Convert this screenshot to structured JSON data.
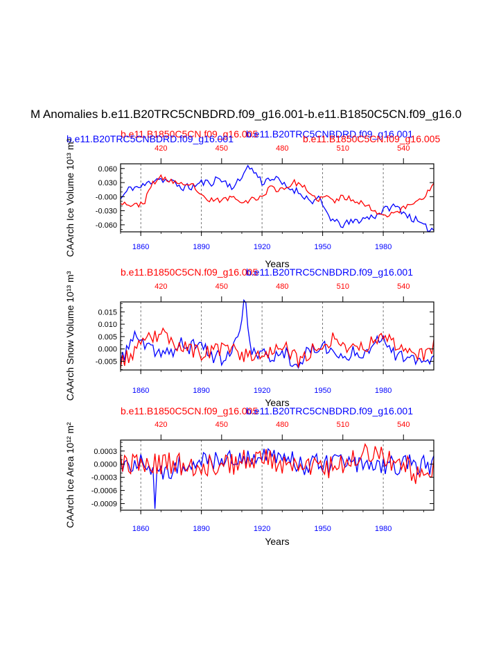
{
  "page_title": "M Anomalies b.e11.B20TRC5CNBDRD.f09_g16.001-b.e11.B1850C5CN.f09_g16.0",
  "colors": {
    "blue": "#0000ff",
    "red": "#ff0000",
    "axis": "#000000",
    "grid": "#555555"
  },
  "chart_data": [
    {
      "type": "line",
      "id": "ice-volume",
      "ylabel": "CAArch Ice Volume 10¹³ m³",
      "xlabel": "Years",
      "top_label_red": "b.e11.B1850C5CN.f09_g16.005",
      "top_label_blue": "b.e11.B20TRC5CNBDRD.f09_g16.001",
      "label_row_a": [
        {
          "text": "b.e11.B20TRC5CNBDRD.f09_g16.001",
          "color": "blue"
        },
        {
          "text": "b.e11.B1850C5CN.f09_g16.005",
          "color": "red"
        }
      ],
      "label_row_b": [
        {
          "text": "b.e11.B20TRC5CNBDRD.f09_g16.001",
          "color": "blue"
        },
        {
          "text": "b.e11.B1850C5CN.f09_g16.005",
          "color": "red"
        }
      ],
      "xlim": [
        1850,
        2005
      ],
      "ylim": [
        -0.075,
        0.07
      ],
      "yticks": [
        0.06,
        0.03,
        0.0,
        -0.03,
        -0.06
      ],
      "ytick_labels": [
        "0.060",
        "0.030",
        "-0.000",
        "-0.030",
        "-0.060"
      ],
      "x_bottom_ticks": [
        1860,
        1890,
        1920,
        1950,
        1980
      ],
      "x_top_ticks": [
        420,
        450,
        480,
        510,
        540
      ],
      "x_top_offset": 1450,
      "grid": "vertical dashed",
      "series": [
        {
          "name": "b.e11.B20TRC5CNBDRD.f09_g16.001",
          "color": "blue",
          "x_start": 1850,
          "x_end": 2005,
          "n": 156,
          "keyframes": [
            [
              1850,
              -0.005
            ],
            [
              1852,
              0.005
            ],
            [
              1855,
              0.02
            ],
            [
              1860,
              0.02
            ],
            [
              1864,
              0.03
            ],
            [
              1868,
              0.04
            ],
            [
              1872,
              0.035
            ],
            [
              1876,
              0.03
            ],
            [
              1880,
              0.02
            ],
            [
              1885,
              0.02
            ],
            [
              1890,
              0.03
            ],
            [
              1895,
              0.03
            ],
            [
              1898,
              0.04
            ],
            [
              1902,
              0.03
            ],
            [
              1906,
              0.02
            ],
            [
              1910,
              0.04
            ],
            [
              1912,
              0.065
            ],
            [
              1914,
              0.06
            ],
            [
              1917,
              0.05
            ],
            [
              1920,
              0.03
            ],
            [
              1924,
              0.04
            ],
            [
              1928,
              0.035
            ],
            [
              1932,
              0.02
            ],
            [
              1936,
              0.015
            ],
            [
              1940,
              0.005
            ],
            [
              1944,
              -0.01
            ],
            [
              1948,
              -0.005
            ],
            [
              1950,
              -0.02
            ],
            [
              1953,
              -0.04
            ],
            [
              1956,
              -0.055
            ],
            [
              1960,
              -0.06
            ],
            [
              1964,
              -0.055
            ],
            [
              1968,
              -0.05
            ],
            [
              1972,
              -0.045
            ],
            [
              1976,
              -0.04
            ],
            [
              1980,
              -0.03
            ],
            [
              1984,
              -0.02
            ],
            [
              1988,
              -0.025
            ],
            [
              1992,
              -0.04
            ],
            [
              1996,
              -0.05
            ],
            [
              2000,
              -0.065
            ],
            [
              2005,
              -0.07
            ]
          ],
          "noise": 0.008,
          "seed": 11
        },
        {
          "name": "b.e11.B1850C5CN.f09_g16.005",
          "color": "red",
          "x_start": 1850,
          "x_end": 2005,
          "n": 156,
          "keyframes": [
            [
              1850,
              -0.01
            ],
            [
              1853,
              -0.015
            ],
            [
              1857,
              -0.02
            ],
            [
              1862,
              -0.01
            ],
            [
              1866,
              0.03
            ],
            [
              1870,
              0.04
            ],
            [
              1874,
              0.035
            ],
            [
              1878,
              0.03
            ],
            [
              1882,
              0.02
            ],
            [
              1886,
              0.025
            ],
            [
              1890,
              0.0
            ],
            [
              1893,
              -0.01
            ],
            [
              1897,
              -0.005
            ],
            [
              1900,
              -0.01
            ],
            [
              1904,
              0.0
            ],
            [
              1908,
              -0.005
            ],
            [
              1912,
              -0.01
            ],
            [
              1916,
              -0.005
            ],
            [
              1920,
              0.0
            ],
            [
              1924,
              0.02
            ],
            [
              1928,
              0.015
            ],
            [
              1932,
              0.02
            ],
            [
              1936,
              0.03
            ],
            [
              1940,
              0.025
            ],
            [
              1944,
              0.0
            ],
            [
              1948,
              -0.005
            ],
            [
              1952,
              0.0
            ],
            [
              1956,
              -0.01
            ],
            [
              1960,
              0.0
            ],
            [
              1964,
              -0.005
            ],
            [
              1968,
              -0.01
            ],
            [
              1972,
              -0.02
            ],
            [
              1976,
              -0.03
            ],
            [
              1980,
              -0.04
            ],
            [
              1984,
              -0.035
            ],
            [
              1988,
              -0.03
            ],
            [
              1992,
              -0.02
            ],
            [
              1996,
              -0.01
            ],
            [
              2000,
              0.0
            ],
            [
              2003,
              0.015
            ],
            [
              2005,
              0.025
            ]
          ],
          "noise": 0.006,
          "seed": 23
        }
      ]
    },
    {
      "type": "line",
      "id": "snow-volume",
      "ylabel": "CAArch Snow Volume 10¹³ m³",
      "xlabel": "Years",
      "top_label_red": "b.e11.B1850C5CN.f09_g16.005",
      "top_label_blue": "b.e11.B20TRC5CNBDRD.f09_g16.001",
      "xlim": [
        1850,
        2005
      ],
      "ylim": [
        -0.0085,
        0.019
      ],
      "yticks": [
        0.015,
        0.01,
        0.005,
        0.0,
        -0.005
      ],
      "ytick_labels": [
        "0.015",
        "0.010",
        "0.005",
        "0.000",
        "-0.005"
      ],
      "x_bottom_ticks": [
        1860,
        1890,
        1920,
        1950,
        1980
      ],
      "x_top_ticks": [
        420,
        450,
        480,
        510,
        540
      ],
      "x_top_offset": 1450,
      "grid": "vertical dashed",
      "series": [
        {
          "name": "b.e11.B20TRC5CNBDRD.f09_g16.001",
          "color": "blue",
          "x_start": 1850,
          "x_end": 2005,
          "n": 156,
          "keyframes": [
            [
              1850,
              -0.006
            ],
            [
              1853,
              0.0
            ],
            [
              1856,
              0.005
            ],
            [
              1860,
              0.003
            ],
            [
              1864,
              0.0
            ],
            [
              1868,
              -0.002
            ],
            [
              1872,
              0.0
            ],
            [
              1876,
              -0.002
            ],
            [
              1880,
              0.002
            ],
            [
              1884,
              0.0
            ],
            [
              1888,
              0.003
            ],
            [
              1892,
              0.0
            ],
            [
              1896,
              -0.003
            ],
            [
              1900,
              -0.004
            ],
            [
              1904,
              -0.003
            ],
            [
              1908,
              0.005
            ],
            [
              1910,
              0.012
            ],
            [
              1911,
              0.017
            ],
            [
              1912,
              0.018
            ],
            [
              1913,
              0.01
            ],
            [
              1915,
              0.0
            ],
            [
              1918,
              -0.003
            ],
            [
              1922,
              -0.002
            ],
            [
              1926,
              -0.004
            ],
            [
              1930,
              0.0
            ],
            [
              1934,
              -0.004
            ],
            [
              1938,
              -0.006
            ],
            [
              1942,
              -0.002
            ],
            [
              1946,
              0.0
            ],
            [
              1950,
              0.002
            ],
            [
              1954,
              -0.001
            ],
            [
              1958,
              -0.003
            ],
            [
              1962,
              -0.004
            ],
            [
              1966,
              0.0
            ],
            [
              1970,
              -0.002
            ],
            [
              1974,
              0.002
            ],
            [
              1978,
              0.005
            ],
            [
              1982,
              0.003
            ],
            [
              1986,
              -0.002
            ],
            [
              1990,
              -0.004
            ],
            [
              1994,
              -0.005
            ],
            [
              1998,
              -0.004
            ],
            [
              2002,
              -0.006
            ],
            [
              2005,
              -0.004
            ]
          ],
          "noise": 0.0028,
          "seed": 37
        },
        {
          "name": "b.e11.B1850C5CN.f09_g16.005",
          "color": "red",
          "x_start": 1850,
          "x_end": 2005,
          "n": 156,
          "keyframes": [
            [
              1850,
              -0.005
            ],
            [
              1854,
              -0.003
            ],
            [
              1858,
              0.0
            ],
            [
              1862,
              0.002
            ],
            [
              1866,
              0.005
            ],
            [
              1870,
              0.006
            ],
            [
              1874,
              0.004
            ],
            [
              1878,
              0.002
            ],
            [
              1882,
              0.001
            ],
            [
              1886,
              -0.001
            ],
            [
              1890,
              -0.002
            ],
            [
              1894,
              -0.001
            ],
            [
              1898,
              0.0
            ],
            [
              1902,
              -0.001
            ],
            [
              1906,
              0.0
            ],
            [
              1910,
              -0.002
            ],
            [
              1914,
              -0.003
            ],
            [
              1918,
              -0.002
            ],
            [
              1922,
              -0.001
            ],
            [
              1926,
              0.0
            ],
            [
              1930,
              0.001
            ],
            [
              1934,
              -0.002
            ],
            [
              1938,
              -0.005
            ],
            [
              1942,
              -0.002
            ],
            [
              1946,
              0.0
            ],
            [
              1950,
              0.002
            ],
            [
              1954,
              0.004
            ],
            [
              1958,
              0.003
            ],
            [
              1962,
              0.001
            ],
            [
              1966,
              0.002
            ],
            [
              1970,
              0.0
            ],
            [
              1974,
              0.003
            ],
            [
              1978,
              0.006
            ],
            [
              1982,
              0.004
            ],
            [
              1986,
              0.002
            ],
            [
              1990,
              0.001
            ],
            [
              1994,
              0.0
            ],
            [
              1998,
              -0.002
            ],
            [
              2002,
              -0.003
            ],
            [
              2005,
              0.002
            ]
          ],
          "noise": 0.0032,
          "seed": 53
        }
      ]
    },
    {
      "type": "line",
      "id": "ice-area",
      "ylabel": "CAArch Ice Area 10¹² m²",
      "xlabel": "Years",
      "top_label_red": "b.e11.B1850C5CN.f09_g16.005",
      "top_label_blue": "b.e11.B20TRC5CNBDRD.f09_g16.001",
      "xlim": [
        1850,
        2005
      ],
      "ylim": [
        -0.00105,
        0.00055
      ],
      "yticks": [
        0.0003,
        0.0,
        -0.0003,
        -0.0006,
        -0.0009
      ],
      "ytick_labels": [
        "0.0003",
        "0.0000",
        "-0.0003",
        "-0.0006",
        "-0.0009"
      ],
      "x_bottom_ticks": [
        1860,
        1890,
        1920,
        1950,
        1980
      ],
      "x_top_ticks": [
        420,
        450,
        480,
        510,
        540
      ],
      "x_top_offset": 1450,
      "grid": "vertical dashed",
      "series": [
        {
          "name": "b.e11.B20TRC5CNBDRD.f09_g16.001",
          "color": "blue",
          "x_start": 1850,
          "x_end": 2005,
          "n": 156,
          "keyframes": [
            [
              1850,
              0.0
            ],
            [
              1860,
              0.0
            ],
            [
              1866,
              -0.0003
            ],
            [
              1867,
              -0.001
            ],
            [
              1868,
              -0.0002
            ],
            [
              1880,
              0.0
            ],
            [
              1900,
              0.0001
            ],
            [
              1920,
              0.0002
            ],
            [
              1940,
              0.0
            ],
            [
              1960,
              0.0
            ],
            [
              1980,
              0.0
            ],
            [
              2000,
              0.0
            ],
            [
              2005,
              0.0
            ]
          ],
          "noise": 0.00025,
          "seed": 71
        },
        {
          "name": "b.e11.B1850C5CN.f09_g16.005",
          "color": "red",
          "x_start": 1850,
          "x_end": 2005,
          "n": 156,
          "keyframes": [
            [
              1850,
              0.0
            ],
            [
              1870,
              0.0
            ],
            [
              1900,
              0.0
            ],
            [
              1920,
              0.0001
            ],
            [
              1950,
              -0.0001
            ],
            [
              1975,
              0.0003
            ],
            [
              1990,
              0.0
            ],
            [
              2000,
              -0.0003
            ],
            [
              2005,
              0.0
            ]
          ],
          "noise": 0.00027,
          "seed": 89
        }
      ]
    }
  ]
}
